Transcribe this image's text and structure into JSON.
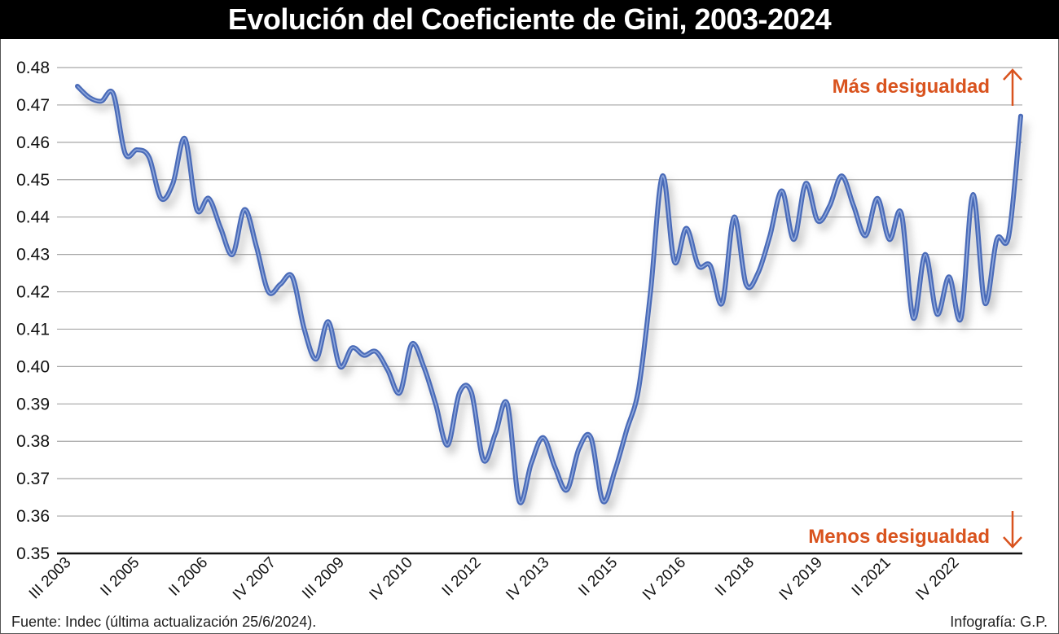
{
  "title": "Evolución del Coeficiente de Gini, 2003-2024",
  "source": "Fuente: Indec (última actualización 25/6/2024).",
  "credit": "Infografía: G.P.",
  "colors": {
    "line": "#4a6bb8",
    "line_highlight": "#8ea7dc",
    "annotation": "#d9531e",
    "title_bg": "#000000",
    "grid": "#a6a6a6"
  },
  "chart_data": {
    "type": "line",
    "title": "Evolución del Coeficiente de Gini, 2003-2024",
    "xlabel": "",
    "ylabel": "",
    "ylim": [
      0.35,
      0.48
    ],
    "y_ticks": [
      "0.48",
      "0.47",
      "0.46",
      "0.45",
      "0.44",
      "0.43",
      "0.42",
      "0.41",
      "0.40",
      "0.39",
      "0.38",
      "0.37",
      "0.36",
      "0.35"
    ],
    "x_tick_labels": [
      "III 2003",
      "II 2005",
      "II 2006",
      "IV 2007",
      "III 2009",
      "IV 2010",
      "II 2012",
      "IV 2013",
      "II 2015",
      "IV 2016",
      "II 2018",
      "IV 2019",
      "II 2021",
      "IV 2022"
    ],
    "grid": true,
    "annotations": {
      "top": "Más desigualdad",
      "bottom": "Menos desigualdad",
      "top_icon": "arrow-up-icon",
      "bottom_icon": "arrow-down-icon"
    },
    "values": [
      0.475,
      0.472,
      0.471,
      0.473,
      0.457,
      0.458,
      0.456,
      0.445,
      0.449,
      0.461,
      0.442,
      0.445,
      0.437,
      0.43,
      0.442,
      0.432,
      0.42,
      0.422,
      0.424,
      0.41,
      0.402,
      0.412,
      0.4,
      0.405,
      0.403,
      0.404,
      0.399,
      0.393,
      0.406,
      0.4,
      0.39,
      0.379,
      0.393,
      0.393,
      0.375,
      0.382,
      0.39,
      0.364,
      0.374,
      0.381,
      0.373,
      0.367,
      0.378,
      0.381,
      0.364,
      0.372,
      0.383,
      0.394,
      0.42,
      0.451,
      0.428,
      0.437,
      0.427,
      0.427,
      0.417,
      0.44,
      0.422,
      0.425,
      0.435,
      0.447,
      0.434,
      0.449,
      0.439,
      0.443,
      0.451,
      0.443,
      0.435,
      0.445,
      0.434,
      0.441,
      0.413,
      0.43,
      0.414,
      0.424,
      0.413,
      0.446,
      0.417,
      0.434,
      0.435,
      0.467
    ]
  }
}
